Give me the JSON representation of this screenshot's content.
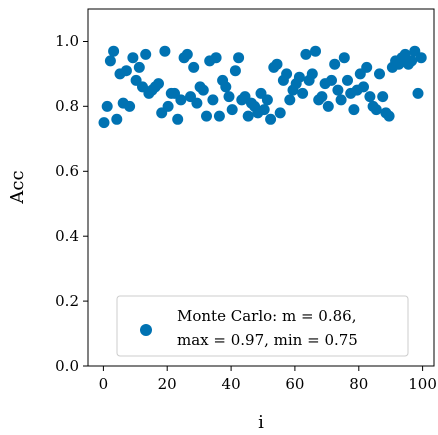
{
  "chart_data": {
    "type": "scatter",
    "title": "",
    "xlabel": "i",
    "ylabel": "Acc",
    "xlim": [
      -4,
      104
    ],
    "ylim": [
      0.0,
      1.1
    ],
    "xticks": [
      "0",
      "20",
      "40",
      "60",
      "80",
      "100"
    ],
    "yticks": [
      "0.0",
      "0.2",
      "0.4",
      "0.6",
      "0.8",
      "1.0"
    ],
    "grid": false,
    "legend_position": "lower-right",
    "series": [
      {
        "name": "Monte Carlo: m = 0.86,",
        "name_line2": "max = 0.97, min = 0.75",
        "color": "#0072b2",
        "x": [
          1,
          2,
          3,
          4,
          5,
          6,
          7,
          8,
          9,
          10,
          11,
          12,
          13,
          14,
          15,
          16,
          17,
          18,
          19,
          20,
          21,
          22,
          23,
          24,
          25,
          26,
          27,
          28,
          29,
          30,
          31,
          32,
          33,
          34,
          35,
          36,
          37,
          38,
          39,
          40,
          41,
          42,
          43,
          44,
          45,
          46,
          47,
          48,
          49,
          50,
          51,
          52,
          53,
          54,
          55,
          56,
          57,
          58,
          59,
          60,
          61,
          62,
          63,
          64,
          65,
          66,
          67,
          68,
          69,
          70,
          71,
          72,
          73,
          74,
          75,
          76,
          77,
          78,
          79,
          80,
          81,
          82,
          83,
          84,
          85,
          86,
          87,
          88,
          89,
          90,
          91,
          92,
          93,
          94,
          95,
          96,
          97,
          98,
          99,
          100
        ],
        "y": [
          0.75,
          0.8,
          0.94,
          0.97,
          0.76,
          0.9,
          0.81,
          0.91,
          0.8,
          0.95,
          0.88,
          0.92,
          0.86,
          0.96,
          0.84,
          0.85,
          0.86,
          0.87,
          0.78,
          0.97,
          0.8,
          0.84,
          0.84,
          0.76,
          0.82,
          0.95,
          0.96,
          0.83,
          0.92,
          0.81,
          0.86,
          0.85,
          0.77,
          0.94,
          0.82,
          0.95,
          0.77,
          0.88,
          0.86,
          0.83,
          0.79,
          0.91,
          0.95,
          0.82,
          0.83,
          0.77,
          0.81,
          0.8,
          0.78,
          0.84,
          0.79,
          0.82,
          0.76,
          0.92,
          0.93,
          0.78,
          0.88,
          0.9,
          0.82,
          0.85,
          0.87,
          0.89,
          0.84,
          0.96,
          0.88,
          0.9,
          0.97,
          0.82,
          0.83,
          0.87,
          0.8,
          0.88,
          0.93,
          0.85,
          0.82,
          0.95,
          0.88,
          0.84,
          0.79,
          0.85,
          0.9,
          0.86,
          0.92,
          0.83,
          0.8,
          0.79,
          0.9,
          0.83,
          0.78,
          0.77,
          0.92,
          0.94,
          0.93,
          0.95,
          0.96,
          0.93,
          0.94,
          0.97,
          0.84,
          0.95
        ]
      }
    ]
  }
}
